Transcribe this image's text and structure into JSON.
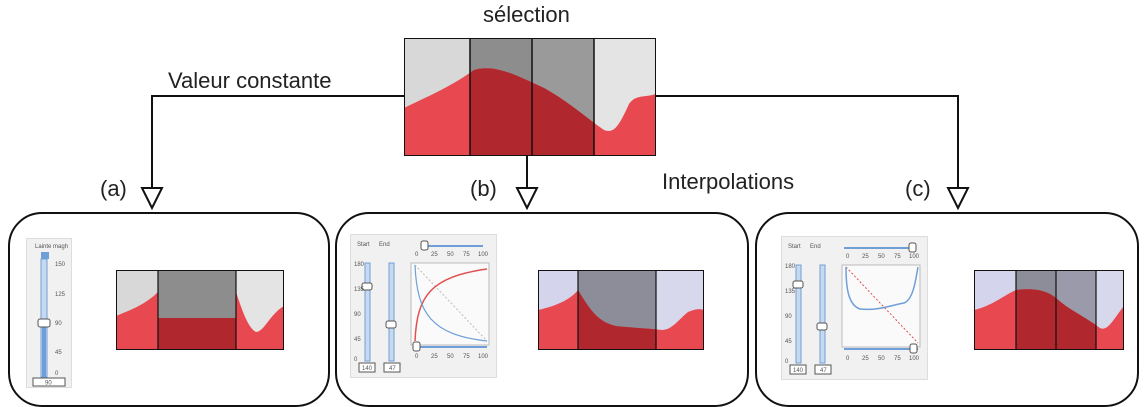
{
  "labels": {
    "selection": "sélection",
    "constant_value": "Valeur constante",
    "interpolations": "Interpolations",
    "panel_a": "(a)",
    "panel_b": "(b)",
    "panel_c": "(c)"
  },
  "colors": {
    "red_light": "#e8484f",
    "red_dark": "#b0282e",
    "grey_light": "#d8d8d8",
    "grey_dark": "#8d8d8d",
    "lavender": "#d4d4ec",
    "slider_blue": "#6f9fd8",
    "curve_red": "#e05050"
  },
  "widget_a": {
    "title": "Lainte magh",
    "ticks": [
      "150",
      "125",
      "90",
      "45",
      "0"
    ],
    "value": "90"
  },
  "widget_b": {
    "col1": "Start",
    "col2": "End",
    "ticks": [
      "180",
      "135",
      "90",
      "45",
      "0"
    ],
    "axis": [
      "0",
      "25",
      "50",
      "75",
      "100"
    ],
    "value1": "140",
    "value2": "47"
  },
  "widget_c": {
    "col1": "Start",
    "col2": "End",
    "ticks": [
      "180",
      "135",
      "90",
      "45",
      "0"
    ],
    "axis": [
      "0",
      "25",
      "50",
      "75",
      "100"
    ],
    "value1": "140",
    "value2": "47"
  }
}
